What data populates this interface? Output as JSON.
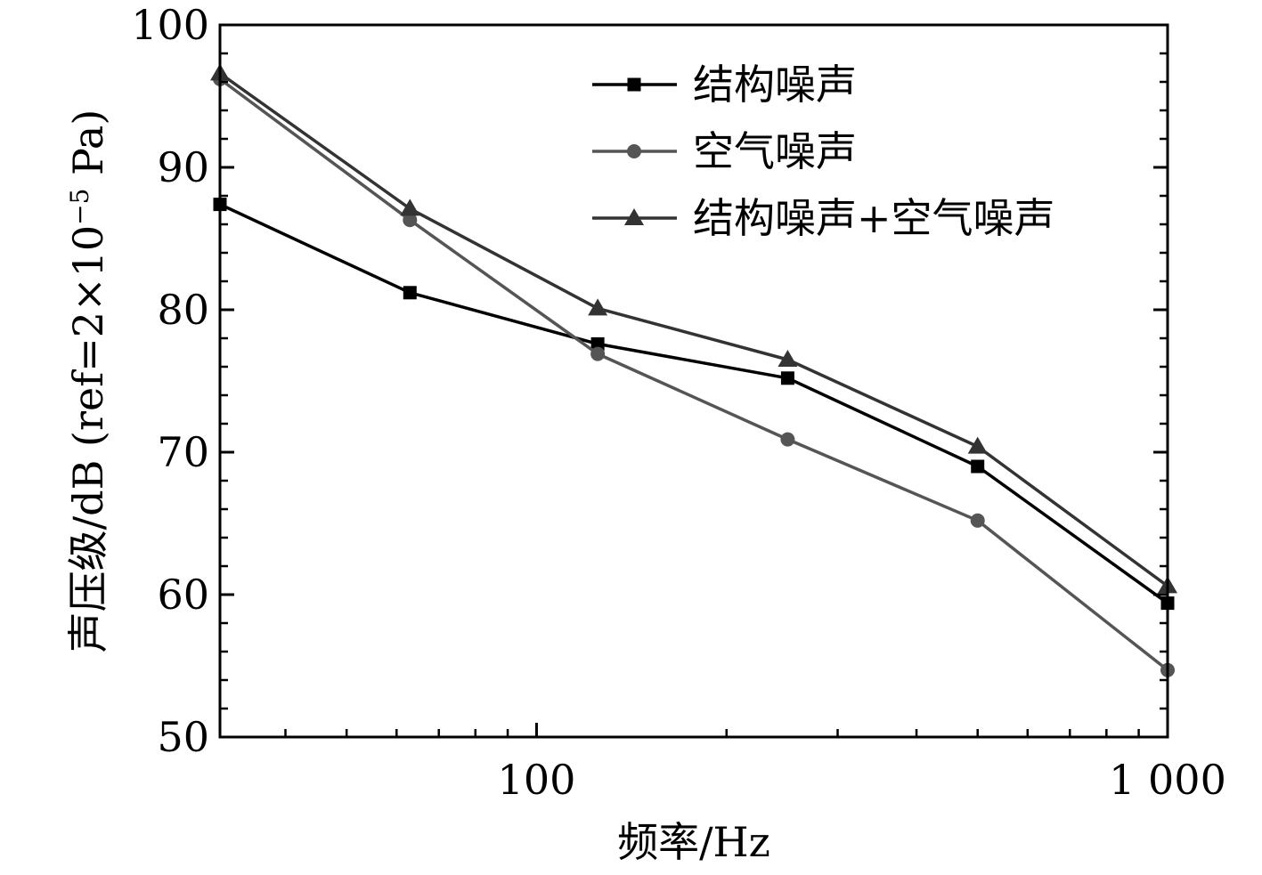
{
  "chart_data": {
    "type": "line",
    "xscale": "log",
    "x": [
      31.5,
      63,
      125,
      250,
      500,
      1000
    ],
    "xlim": [
      31.5,
      1000
    ],
    "x_ticks": [
      {
        "value": 100,
        "label": "100"
      },
      {
        "value": 1000,
        "label": "1 000"
      }
    ],
    "ylim": [
      50,
      100
    ],
    "y_ticks": [
      {
        "value": 50,
        "label": "50"
      },
      {
        "value": 60,
        "label": "60"
      },
      {
        "value": 70,
        "label": "70"
      },
      {
        "value": 80,
        "label": "80"
      },
      {
        "value": 90,
        "label": "90"
      },
      {
        "value": 100,
        "label": "100"
      }
    ],
    "xlabel": "频率/Hz",
    "ylabel_main": "声压级/dB (ref=2×10",
    "ylabel_sup": "−5",
    "ylabel_tail": " Pa)",
    "legend_position": "top-right",
    "grid": false,
    "series": [
      {
        "name": "结构噪声",
        "marker": "square",
        "color": "#000000",
        "values": [
          87.4,
          81.2,
          77.6,
          75.2,
          69.0,
          59.4
        ]
      },
      {
        "name": "空气噪声",
        "marker": "circle",
        "color": "#555555",
        "values": [
          96.2,
          86.3,
          76.9,
          70.9,
          65.2,
          54.7
        ]
      },
      {
        "name": "结构噪声+空气噪声",
        "marker": "triangle",
        "color": "#333333",
        "values": [
          96.6,
          87.1,
          80.1,
          76.5,
          70.4,
          60.6
        ]
      }
    ]
  }
}
